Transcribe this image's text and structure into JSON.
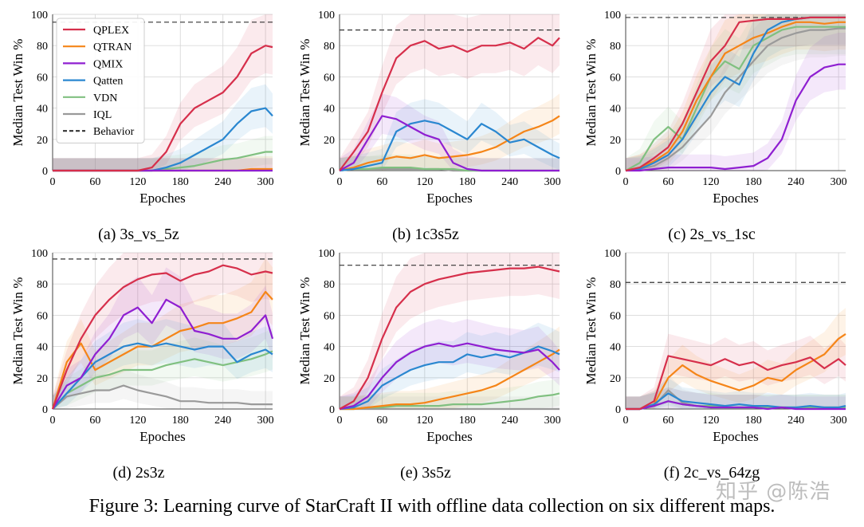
{
  "figure": {
    "caption": "Figure 3: Learning curve of StarCraft II with offline data collection on six different maps.",
    "watermark": "知乎 @陈浩"
  },
  "legend": {
    "placement": "top-left of panel (a)",
    "entries": [
      {
        "label": "QPLEX",
        "color": "#d62f4b",
        "style": "solid"
      },
      {
        "label": "QTRAN",
        "color": "#f58518",
        "style": "solid"
      },
      {
        "label": "QMIX",
        "color": "#8f1fd1",
        "style": "solid"
      },
      {
        "label": "Qatten",
        "color": "#2a87d0",
        "style": "solid"
      },
      {
        "label": "VDN",
        "color": "#80c080",
        "style": "solid"
      },
      {
        "label": "IQL",
        "color": "#9a9a9a",
        "style": "solid"
      },
      {
        "label": "Behavior",
        "color": "#333333",
        "style": "dashed"
      }
    ]
  },
  "chart_data": [
    {
      "type": "line",
      "title": "(a) 3s_vs_5z",
      "xlabel": "Epoches",
      "ylabel": "Median Test Win %",
      "xlim": [
        0,
        310
      ],
      "ylim": [
        0,
        100
      ],
      "xticks": [
        0,
        60,
        120,
        180,
        240,
        300
      ],
      "yticks": [
        0,
        20,
        40,
        60,
        80,
        100
      ],
      "behavior": 95,
      "x": [
        0,
        20,
        40,
        60,
        80,
        100,
        120,
        140,
        160,
        180,
        200,
        220,
        240,
        260,
        280,
        300,
        310
      ],
      "series": [
        {
          "name": "QPLEX",
          "values": [
            0,
            0,
            0,
            0,
            0,
            0,
            0,
            2,
            12,
            30,
            40,
            45,
            50,
            60,
            75,
            80,
            79
          ]
        },
        {
          "name": "QTRAN",
          "values": [
            0,
            0,
            0,
            0,
            0,
            0,
            0,
            0,
            0,
            0,
            0,
            0,
            0,
            0,
            1,
            1,
            1
          ]
        },
        {
          "name": "QMIX",
          "values": [
            0,
            0,
            0,
            0,
            0,
            0,
            0,
            0,
            0,
            0,
            0,
            0,
            0,
            0,
            0,
            0,
            0
          ]
        },
        {
          "name": "Qatten",
          "values": [
            0,
            0,
            0,
            0,
            0,
            0,
            0,
            0,
            2,
            5,
            10,
            15,
            20,
            30,
            38,
            40,
            35
          ]
        },
        {
          "name": "VDN",
          "values": [
            0,
            0,
            0,
            0,
            0,
            0,
            0,
            0,
            1,
            2,
            3,
            5,
            7,
            8,
            10,
            12,
            12
          ]
        },
        {
          "name": "IQL",
          "values": [
            0,
            0,
            0,
            0,
            0,
            0,
            0,
            0,
            0,
            0,
            0,
            0,
            0,
            0,
            0,
            0,
            0
          ]
        }
      ]
    },
    {
      "type": "line",
      "title": "(b) 1c3s5z",
      "xlabel": "Epoches",
      "ylabel": "Median Test Win %",
      "xlim": [
        0,
        310
      ],
      "ylim": [
        0,
        100
      ],
      "xticks": [
        0,
        60,
        120,
        180,
        240,
        300
      ],
      "yticks": [
        0,
        20,
        40,
        60,
        80,
        100
      ],
      "behavior": 90,
      "x": [
        0,
        20,
        40,
        60,
        80,
        100,
        120,
        140,
        160,
        180,
        200,
        220,
        240,
        260,
        280,
        300,
        310
      ],
      "series": [
        {
          "name": "QPLEX",
          "values": [
            0,
            12,
            25,
            50,
            72,
            80,
            83,
            78,
            80,
            76,
            80,
            80,
            82,
            78,
            85,
            80,
            85
          ]
        },
        {
          "name": "QTRAN",
          "values": [
            0,
            2,
            5,
            7,
            9,
            8,
            10,
            8,
            9,
            10,
            12,
            15,
            20,
            25,
            28,
            32,
            35
          ]
        },
        {
          "name": "QMIX",
          "values": [
            0,
            5,
            20,
            35,
            33,
            28,
            23,
            20,
            5,
            1,
            0,
            0,
            0,
            0,
            0,
            0,
            0
          ]
        },
        {
          "name": "Qatten",
          "values": [
            0,
            1,
            3,
            5,
            25,
            30,
            32,
            30,
            25,
            20,
            30,
            25,
            18,
            20,
            15,
            10,
            8
          ]
        },
        {
          "name": "VDN",
          "values": [
            0,
            1,
            1,
            2,
            2,
            2,
            1,
            1,
            1,
            0,
            0,
            0,
            0,
            0,
            0,
            0,
            0
          ]
        },
        {
          "name": "IQL",
          "values": [
            0,
            1,
            1,
            1,
            1,
            1,
            1,
            1,
            0,
            0,
            0,
            0,
            0,
            0,
            0,
            0,
            0
          ]
        }
      ]
    },
    {
      "type": "line",
      "title": "(c) 2s_vs_1sc",
      "xlabel": "Epoches",
      "ylabel": "Median Test Win %",
      "xlim": [
        0,
        310
      ],
      "ylim": [
        0,
        100
      ],
      "xticks": [
        0,
        60,
        120,
        180,
        240,
        300
      ],
      "yticks": [
        0,
        20,
        40,
        60,
        80,
        100
      ],
      "behavior": 98,
      "x": [
        0,
        20,
        40,
        60,
        80,
        100,
        120,
        140,
        160,
        180,
        200,
        220,
        240,
        260,
        280,
        300,
        310
      ],
      "series": [
        {
          "name": "QPLEX",
          "values": [
            0,
            2,
            8,
            15,
            30,
            50,
            70,
            80,
            95,
            96,
            97,
            97,
            97,
            98,
            98,
            98,
            98
          ]
        },
        {
          "name": "QTRAN",
          "values": [
            0,
            2,
            6,
            12,
            25,
            45,
            60,
            75,
            80,
            85,
            88,
            92,
            95,
            95,
            94,
            95,
            95
          ]
        },
        {
          "name": "QMIX",
          "values": [
            0,
            0,
            1,
            2,
            2,
            2,
            2,
            1,
            2,
            3,
            8,
            20,
            45,
            60,
            66,
            68,
            68
          ]
        },
        {
          "name": "Qatten",
          "values": [
            0,
            1,
            5,
            10,
            20,
            35,
            50,
            60,
            55,
            75,
            90,
            95,
            97,
            98,
            98,
            98,
            98
          ]
        },
        {
          "name": "VDN",
          "values": [
            0,
            5,
            20,
            28,
            20,
            40,
            60,
            70,
            65,
            80,
            85,
            90,
            92,
            92,
            92,
            92,
            92
          ]
        },
        {
          "name": "IQL",
          "values": [
            0,
            1,
            3,
            8,
            15,
            25,
            35,
            50,
            60,
            70,
            80,
            85,
            88,
            90,
            90,
            91,
            91
          ]
        }
      ]
    },
    {
      "type": "line",
      "title": "(d) 2s3z",
      "xlabel": "Epoches",
      "ylabel": "Median Test Win %",
      "xlim": [
        0,
        310
      ],
      "ylim": [
        0,
        100
      ],
      "xticks": [
        0,
        60,
        120,
        180,
        240,
        300
      ],
      "yticks": [
        0,
        20,
        40,
        60,
        80,
        100
      ],
      "behavior": 96,
      "x": [
        0,
        20,
        40,
        60,
        80,
        100,
        120,
        140,
        160,
        180,
        200,
        220,
        240,
        260,
        280,
        300,
        310
      ],
      "series": [
        {
          "name": "QPLEX",
          "values": [
            0,
            25,
            45,
            60,
            70,
            78,
            83,
            86,
            87,
            82,
            86,
            88,
            92,
            90,
            86,
            88,
            87
          ]
        },
        {
          "name": "QTRAN",
          "values": [
            0,
            30,
            42,
            25,
            30,
            35,
            40,
            40,
            45,
            50,
            52,
            55,
            55,
            58,
            62,
            75,
            70
          ]
        },
        {
          "name": "QMIX",
          "values": [
            0,
            15,
            20,
            35,
            45,
            60,
            65,
            55,
            70,
            65,
            50,
            48,
            45,
            45,
            50,
            60,
            45
          ]
        },
        {
          "name": "Qatten",
          "values": [
            0,
            10,
            20,
            30,
            35,
            40,
            42,
            40,
            42,
            40,
            38,
            40,
            40,
            30,
            35,
            38,
            35
          ]
        },
        {
          "name": "VDN",
          "values": [
            0,
            10,
            15,
            20,
            22,
            25,
            25,
            25,
            28,
            30,
            32,
            30,
            28,
            30,
            32,
            35,
            37
          ]
        },
        {
          "name": "IQL",
          "values": [
            0,
            8,
            10,
            12,
            12,
            15,
            12,
            10,
            8,
            5,
            5,
            4,
            4,
            4,
            3,
            3,
            3
          ]
        }
      ]
    },
    {
      "type": "line",
      "title": "(e) 3s5z",
      "xlabel": "Epoches",
      "ylabel": "Median Test Win %",
      "xlim": [
        0,
        310
      ],
      "ylim": [
        0,
        100
      ],
      "xticks": [
        0,
        60,
        120,
        180,
        240,
        300
      ],
      "yticks": [
        0,
        20,
        40,
        60,
        80,
        100
      ],
      "behavior": 92,
      "x": [
        0,
        20,
        40,
        60,
        80,
        100,
        120,
        140,
        160,
        180,
        200,
        220,
        240,
        260,
        280,
        300,
        310
      ],
      "series": [
        {
          "name": "QPLEX",
          "values": [
            0,
            5,
            20,
            45,
            65,
            75,
            80,
            83,
            85,
            87,
            88,
            89,
            90,
            90,
            91,
            89,
            88
          ]
        },
        {
          "name": "QTRAN",
          "values": [
            0,
            0,
            1,
            2,
            3,
            3,
            4,
            6,
            8,
            10,
            12,
            15,
            20,
            25,
            30,
            35,
            38
          ]
        },
        {
          "name": "QMIX",
          "values": [
            0,
            2,
            8,
            20,
            30,
            36,
            40,
            42,
            40,
            42,
            40,
            38,
            37,
            36,
            38,
            30,
            25
          ]
        },
        {
          "name": "Qatten",
          "values": [
            0,
            1,
            5,
            15,
            20,
            25,
            28,
            30,
            30,
            35,
            33,
            35,
            33,
            36,
            40,
            37,
            35
          ]
        },
        {
          "name": "VDN",
          "values": [
            0,
            0,
            1,
            1,
            2,
            2,
            2,
            2,
            3,
            3,
            3,
            4,
            5,
            6,
            8,
            9,
            10
          ]
        },
        {
          "name": "IQL",
          "values": [
            0,
            0,
            0,
            0,
            0,
            0,
            0,
            0,
            0,
            0,
            0,
            0,
            0,
            0,
            0,
            0,
            0
          ]
        }
      ]
    },
    {
      "type": "line",
      "title": "(f) 2c_vs_64zg",
      "xlabel": "Epoches",
      "ylabel": "Median Test Win %",
      "xlim": [
        0,
        310
      ],
      "ylim": [
        0,
        100
      ],
      "xticks": [
        0,
        60,
        120,
        180,
        240,
        300
      ],
      "yticks": [
        0,
        20,
        40,
        60,
        80,
        100
      ],
      "behavior": 81,
      "x": [
        0,
        20,
        40,
        60,
        80,
        100,
        120,
        140,
        160,
        180,
        200,
        220,
        240,
        260,
        280,
        300,
        310
      ],
      "series": [
        {
          "name": "QPLEX",
          "values": [
            0,
            0,
            5,
            34,
            32,
            30,
            28,
            32,
            28,
            30,
            25,
            28,
            30,
            33,
            26,
            32,
            28
          ]
        },
        {
          "name": "QTRAN",
          "values": [
            0,
            0,
            3,
            20,
            28,
            22,
            18,
            15,
            12,
            15,
            20,
            18,
            25,
            30,
            35,
            45,
            48
          ]
        },
        {
          "name": "QMIX",
          "values": [
            0,
            0,
            2,
            5,
            3,
            2,
            1,
            1,
            1,
            1,
            0,
            1,
            0,
            0,
            0,
            0,
            0
          ]
        },
        {
          "name": "Qatten",
          "values": [
            0,
            0,
            3,
            10,
            5,
            4,
            3,
            2,
            3,
            2,
            2,
            1,
            1,
            2,
            1,
            1,
            2
          ]
        },
        {
          "name": "VDN",
          "values": [
            0,
            0,
            2,
            5,
            3,
            2,
            2,
            1,
            1,
            1,
            1,
            1,
            1,
            1,
            1,
            1,
            1
          ]
        },
        {
          "name": "IQL",
          "values": [
            0,
            0,
            2,
            12,
            4,
            2,
            1,
            1,
            1,
            1,
            1,
            1,
            1,
            1,
            1,
            1,
            1
          ]
        }
      ]
    }
  ]
}
